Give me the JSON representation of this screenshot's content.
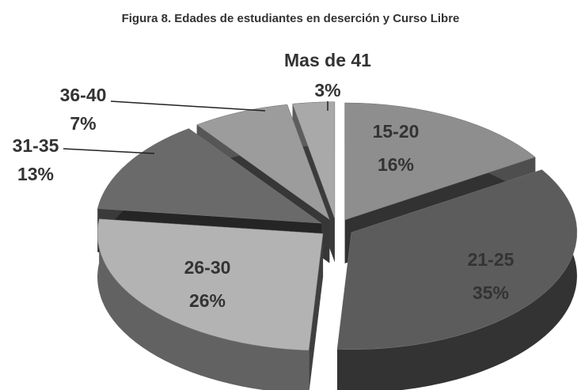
{
  "chart_data": {
    "type": "pie3d",
    "title": "Figura 8. Edades de estudiantes en deserción y Curso Libre",
    "categories": [
      "15-20",
      "21-25",
      "26-30",
      "31-35",
      "36-40",
      "Mas de 41"
    ],
    "values": [
      16,
      35,
      26,
      13,
      7,
      3
    ],
    "value_labels": [
      "16%",
      "35%",
      "26%",
      "13%",
      "7%",
      "3%"
    ],
    "colors": [
      "#8e8e8e",
      "#5c5c5c",
      "#b3b3b3",
      "#6a6a6a",
      "#9c9c9c",
      "#a9a9a9"
    ]
  }
}
